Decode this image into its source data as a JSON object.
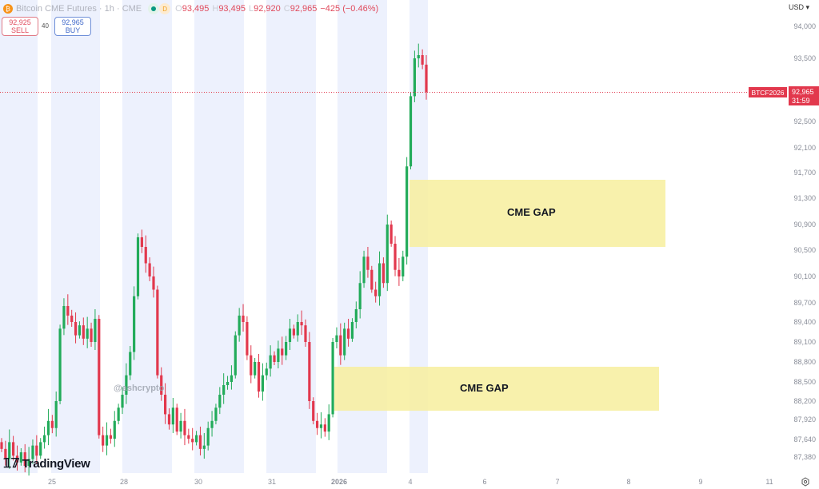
{
  "header": {
    "symbol": "Bitcoin CME Futures",
    "interval": "1h",
    "exchange": "CME",
    "badge": "D",
    "open_label": "O",
    "open": "93,495",
    "high_label": "H",
    "high": "93,495",
    "low_label": "L",
    "low": "92,920",
    "close_label": "C",
    "close": "92,965",
    "change": "−425 (−0.46%)"
  },
  "trade": {
    "sell_price": "92,925",
    "sell_label": "SELL",
    "spread": "40",
    "buy_price": "92,965",
    "buy_label": "BUY"
  },
  "currency": "USD ▾",
  "branding": {
    "logo_mark": "17",
    "name": "TradingView"
  },
  "watermark": "@ashcrypto",
  "price_marker": {
    "ticker": "BTCF2026",
    "price": "92,965",
    "countdown": "31:59"
  },
  "colors": {
    "up": "#22ab5a",
    "down": "#e2384d",
    "session_bg": "#edf1fd",
    "gap_fill": "#f7ef9e",
    "price_line": "#e2384d"
  },
  "chart_data": {
    "type": "candlestick",
    "title": "",
    "timeframe": "1h",
    "closes": [
      87500,
      87350,
      87600,
      87400,
      87300,
      87450,
      87250,
      87350,
      87550,
      87400,
      87600,
      87700,
      87900,
      87800,
      88200,
      89300,
      89650,
      89500,
      89400,
      89200,
      89350,
      89150,
      89300,
      89100,
      89450,
      87700,
      87550,
      87700,
      87650,
      87900,
      88100,
      88300,
      88600,
      88950,
      89800,
      90700,
      90550,
      90300,
      90100,
      89900,
      88600,
      88300,
      88000,
      87850,
      88100,
      87750,
      87900,
      87700,
      87650,
      87600,
      87700,
      87500,
      87550,
      87800,
      87900,
      88100,
      88300,
      88450,
      88500,
      88600,
      89200,
      89500,
      89400,
      88900,
      88600,
      88800,
      88350,
      88600,
      88700,
      88900,
      88800,
      89000,
      88900,
      89100,
      89300,
      89200,
      89400,
      89350,
      89100,
      88200,
      87900,
      87800,
      87850,
      87750,
      88000,
      89100,
      89200,
      88900,
      89300,
      89150,
      89400,
      89600,
      90000,
      90400,
      90200,
      89900,
      89800,
      90300,
      90000,
      90900,
      90600,
      90200,
      90100,
      90400,
      91800,
      92900,
      93500,
      93550,
      93400,
      92965
    ],
    "y_ticks": [
      94000,
      93500,
      92500,
      92100,
      91700,
      91300,
      90900,
      90500,
      90100,
      89700,
      89400,
      89100,
      88800,
      88500,
      88200,
      87920,
      87640,
      87380
    ],
    "y_tick_labels": [
      "94,000",
      "93,500",
      "92,500",
      "92,100",
      "91,700",
      "91,300",
      "90,900",
      "90,500",
      "90,100",
      "89,700",
      "89,400",
      "89,100",
      "88,800",
      "88,500",
      "88,200",
      "87,920",
      "87,640",
      "87,380"
    ],
    "x_tick_labels": [
      "25",
      "28",
      "30",
      "31",
      "2026",
      "4",
      "6",
      "7",
      "8",
      "9",
      "11"
    ],
    "last_price": 92965,
    "annotations": [
      {
        "label": "CME GAP",
        "price_top": 91600,
        "price_bottom": 90600
      },
      {
        "label": "CME GAP",
        "price_top": 88700,
        "price_bottom": 88050
      }
    ]
  }
}
